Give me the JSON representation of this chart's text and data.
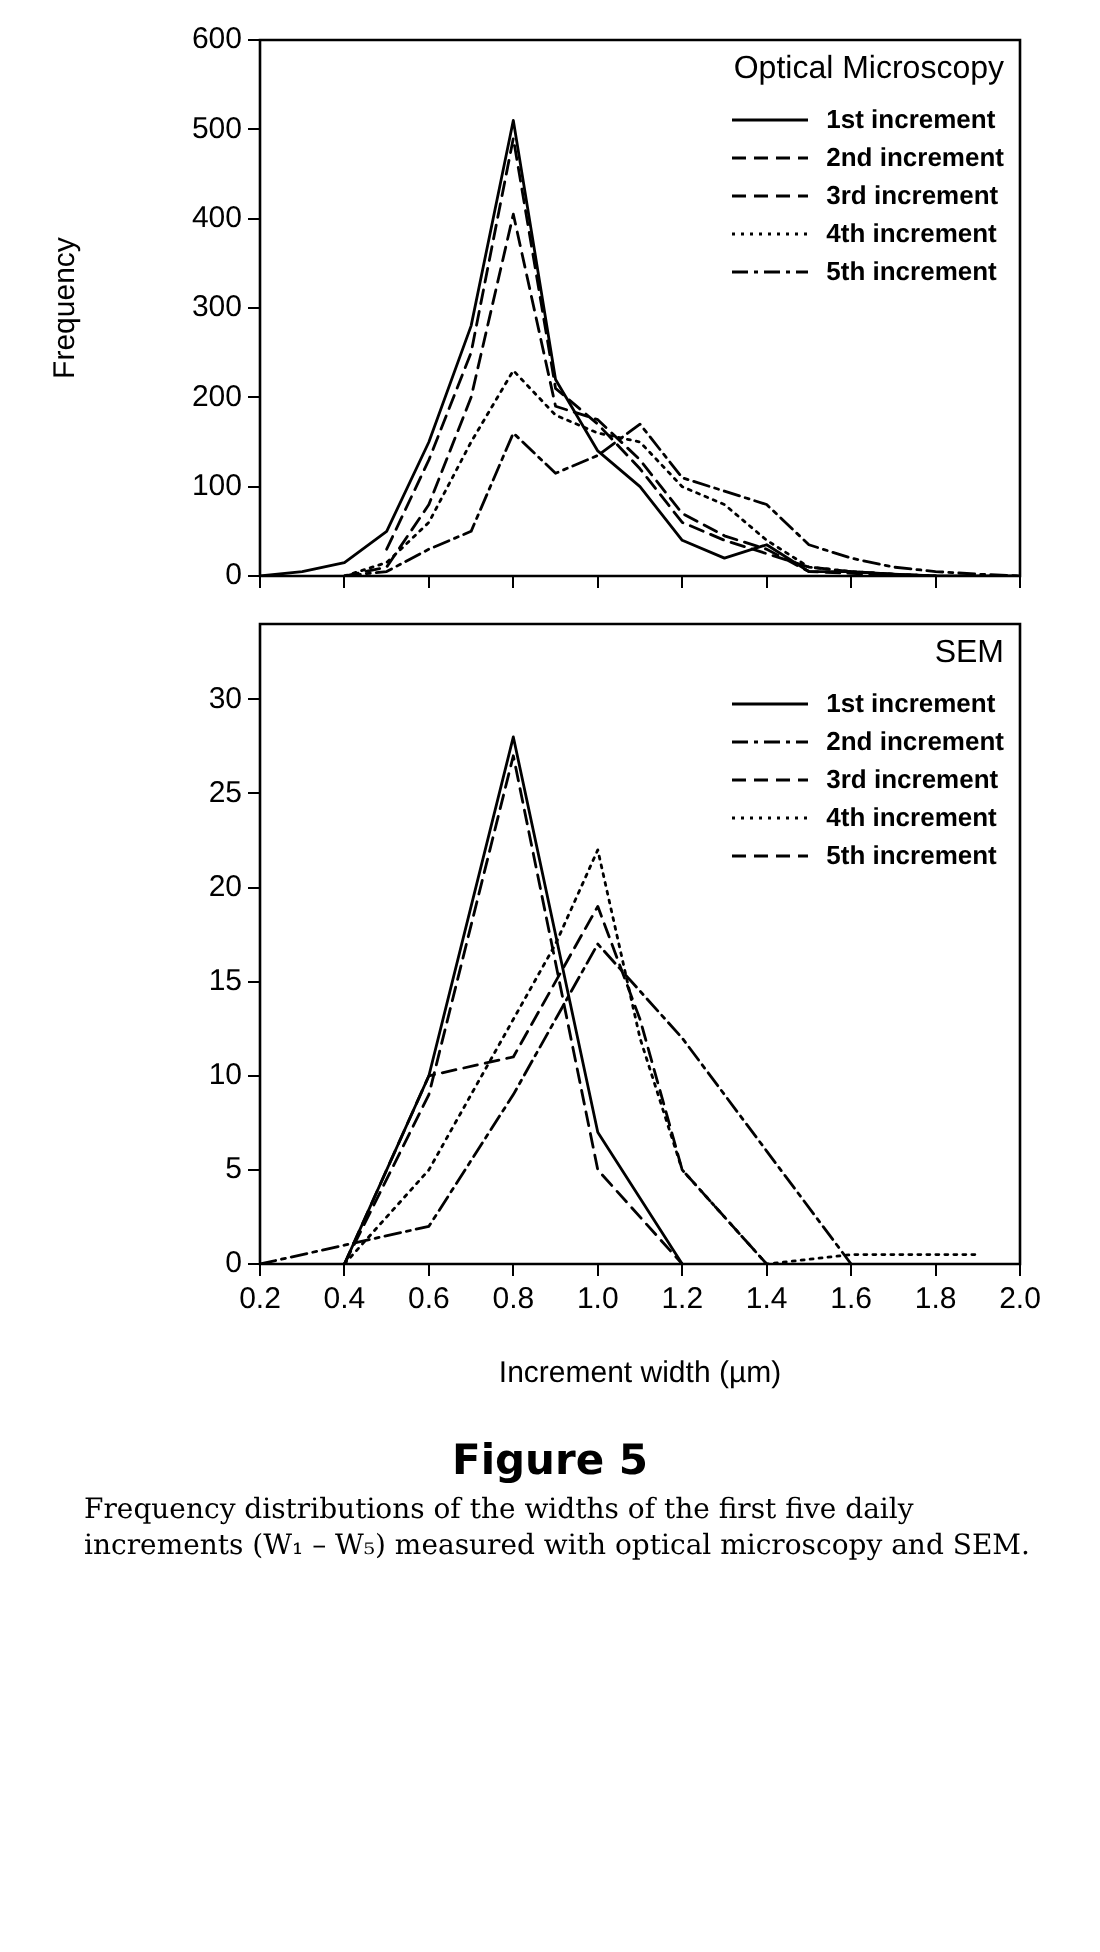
{
  "chart_data": [
    {
      "type": "line",
      "legend_title": "Optical Microscopy",
      "ylabel": "Frequency",
      "xlim": [
        0.2,
        2.0
      ],
      "ylim": [
        0,
        600
      ],
      "yticks": [
        0,
        100,
        200,
        300,
        400,
        500,
        600
      ],
      "xticks": [
        0.2,
        0.4,
        0.6,
        0.8,
        1.0,
        1.2,
        1.4,
        1.6,
        1.8,
        2.0
      ],
      "tick_labels": "y",
      "legend": "top right",
      "grid": false,
      "marker": "none",
      "x": [
        0.2,
        0.3,
        0.4,
        0.5,
        0.6,
        0.7,
        0.8,
        0.9,
        1.0,
        1.1,
        1.2,
        1.3,
        1.4,
        1.5,
        1.6,
        1.7,
        1.8,
        1.9,
        2.0
      ],
      "series": [
        {
          "name": "1st increment",
          "color": "#000000",
          "line_style": "solid",
          "values": [
            0,
            5,
            15,
            50,
            150,
            280,
            510,
            220,
            140,
            100,
            40,
            20,
            35,
            5,
            5,
            2,
            0,
            0,
            0
          ]
        },
        {
          "name": "2nd increment",
          "color": "#000000",
          "line_style": "dashed",
          "values": [
            null,
            null,
            null,
            30,
            130,
            250,
            490,
            210,
            170,
            120,
            60,
            40,
            25,
            10,
            5,
            2,
            0,
            null,
            null
          ]
        },
        {
          "name": "3rd increment",
          "color": "#000000",
          "line_style": "dashed",
          "values": [
            null,
            null,
            0,
            10,
            80,
            200,
            405,
            190,
            175,
            130,
            70,
            45,
            30,
            5,
            3,
            1,
            0,
            null,
            null
          ]
        },
        {
          "name": "4th increment",
          "color": "#000000",
          "line_style": "dotted",
          "values": [
            null,
            null,
            0,
            15,
            60,
            150,
            230,
            180,
            160,
            150,
            100,
            80,
            40,
            10,
            5,
            2,
            0,
            null,
            null
          ]
        },
        {
          "name": "5th increment",
          "color": "#000000",
          "line_style": "dashdot",
          "values": [
            null,
            null,
            0,
            5,
            30,
            50,
            160,
            115,
            135,
            170,
            110,
            95,
            80,
            35,
            20,
            10,
            5,
            2,
            0
          ]
        }
      ]
    },
    {
      "type": "line",
      "legend_title": "SEM",
      "xlabel": "Increment width (µm)",
      "xlim": [
        0.2,
        2.0
      ],
      "ylim": [
        0,
        34
      ],
      "yticks": [
        0,
        5,
        10,
        15,
        20,
        25,
        30
      ],
      "xticks": [
        0.2,
        0.4,
        0.6,
        0.8,
        {
          "value": 1.0,
          "label": "1.0"
        },
        1.2,
        1.4,
        1.6,
        1.8,
        {
          "value": 2.0,
          "label": "2.0"
        }
      ],
      "legend": "top right",
      "grid": false,
      "marker": "none",
      "annotations": [
        "Figure 5",
        "Frequency distributions of the widths of the first five daily increments (W₁ – W₅) measured with optical microscopy and SEM."
      ],
      "series": [
        {
          "name": "1st increment",
          "color": "#000000",
          "line_style": "solid",
          "x": [
            0.4,
            0.6,
            0.8,
            1.0,
            1.2
          ],
          "values": [
            0,
            10,
            28,
            7,
            0
          ]
        },
        {
          "name": "2nd increment",
          "color": "#000000",
          "line_style": "dashdot",
          "x": [
            0.2,
            0.4,
            0.6,
            0.8,
            1.0,
            1.2,
            1.4,
            1.6
          ],
          "values": [
            0,
            1,
            2,
            9,
            17,
            12,
            6,
            0
          ]
        },
        {
          "name": "3rd increment",
          "color": "#000000",
          "line_style": "dashed",
          "x": [
            0.4,
            0.6,
            0.8,
            1.0,
            1.2
          ],
          "values": [
            0,
            9,
            27,
            5,
            0
          ]
        },
        {
          "name": "4th increment",
          "color": "#000000",
          "line_style": "dotted",
          "x": [
            0.4,
            0.6,
            0.8,
            0.9,
            1.0,
            1.1,
            1.2,
            1.4,
            1.6,
            1.8,
            1.9
          ],
          "values": [
            0,
            5,
            13,
            17,
            22,
            12,
            5,
            0,
            0.5,
            0.5,
            0.5
          ]
        },
        {
          "name": "5th increment",
          "color": "#000000",
          "line_style": "dashed",
          "x": [
            0.4,
            0.6,
            0.8,
            1.0,
            1.1,
            1.2,
            1.4
          ],
          "values": [
            0,
            10,
            11,
            19,
            13,
            5,
            0
          ]
        }
      ]
    }
  ]
}
